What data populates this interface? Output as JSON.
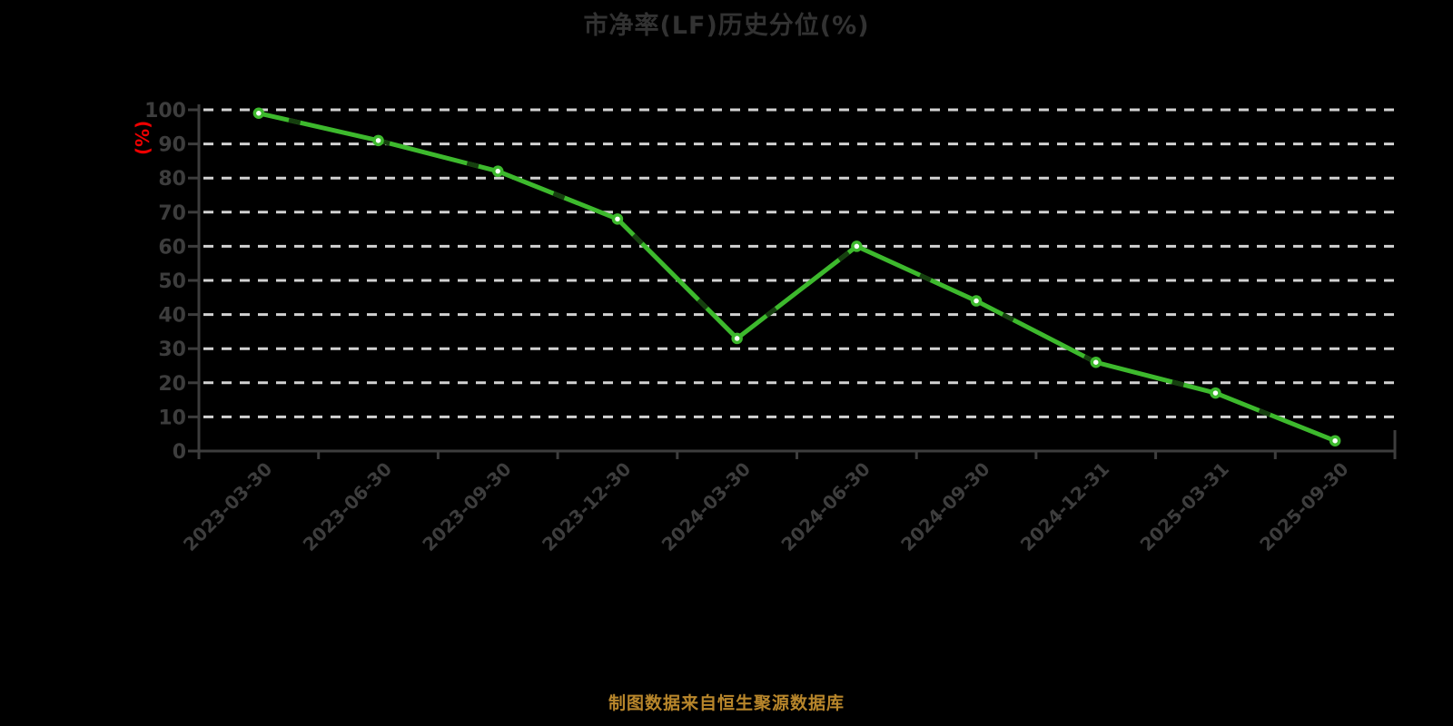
{
  "chart": {
    "title": "市净率(LF)历史分位(%)",
    "y_unit_label": "(%)",
    "source_note": "制图数据来自恒生聚源数据库"
  },
  "chart_data": {
    "type": "line",
    "title": "市净率(LF)历史分位(%)",
    "categories": [
      "2023-03-30",
      "2023-06-30",
      "2023-09-30",
      "2023-12-30",
      "2024-03-30",
      "2024-06-30",
      "2024-09-30",
      "2024-12-31",
      "2025-03-31",
      "2025-09-30"
    ],
    "series": [
      {
        "name": "市净率(LF)历史分位(%)",
        "values": [
          99,
          91,
          82,
          68,
          33,
          60,
          44,
          26,
          17,
          3
        ]
      }
    ],
    "xlabel": "",
    "ylabel": "(%)",
    "ylim": [
      0,
      100
    ],
    "y_ticks": [
      0,
      10,
      20,
      30,
      40,
      50,
      60,
      70,
      80,
      90,
      100
    ],
    "grid": "horizontal-dashed",
    "legend_position": "none",
    "marker": "circle-white-fill-green-stroke",
    "x_label_rotation_deg": 45
  },
  "colors": {
    "background": "#000000",
    "title_text": "#323232",
    "axis_line": "#3d3d3d",
    "tick_label": "#3d3d3d",
    "gridline": "#d2d2d2",
    "series_line": "#3db92d",
    "series_dash_overlay": "#16400f",
    "marker_fill": "#ffffff",
    "y_unit_text": "#ee0000",
    "source_note_text": "#b8862b"
  }
}
